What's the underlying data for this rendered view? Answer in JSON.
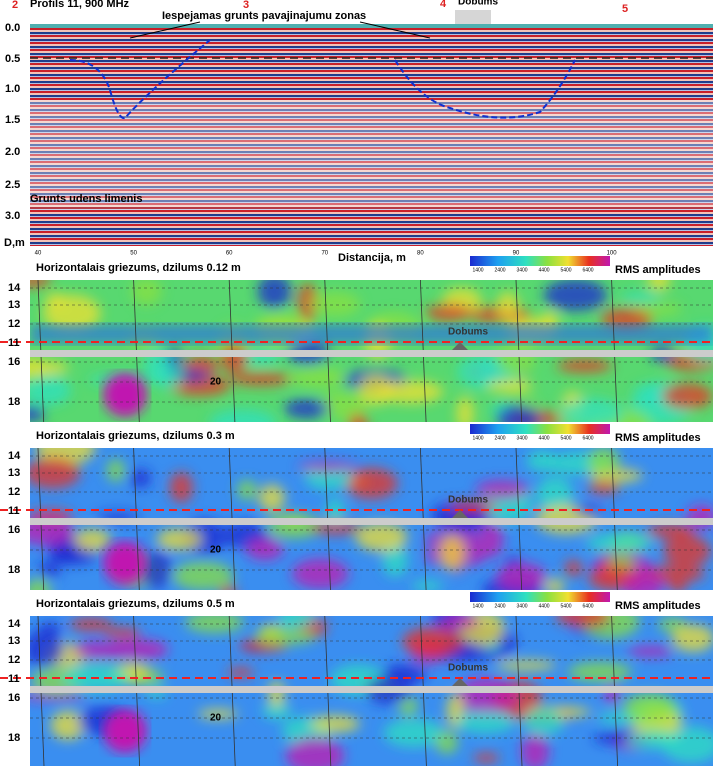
{
  "profile": {
    "markers": [
      "2",
      "3",
      "4",
      "5"
    ],
    "title": "Profils 11, 900 MHz",
    "annotation": "Iespejamas grunts pavajinajumu zonas",
    "cavity_label": "Dobums",
    "water_label": "Grunts udens limenis",
    "depth_ticks": [
      "0.0",
      "0.5",
      "1.0",
      "1.5",
      "2.0",
      "2.5",
      "3.0"
    ],
    "depth_axis_label": "D,m",
    "distance_ticks": [
      "40",
      "50",
      "60",
      "70",
      "80",
      "90",
      "100"
    ],
    "distance_axis_label": "Distancija, m"
  },
  "slices": [
    {
      "title": "Horizontalais  griezums, dzilums 0.12 m",
      "row_labels": [
        "14",
        "13",
        "12",
        "11",
        "16",
        "18"
      ],
      "center_label": "20",
      "cavity_label": "Dobums",
      "legend_ticks": [
        "1400",
        "2400",
        "3400",
        "4400",
        "5400",
        "6400"
      ],
      "legend_label": "RMS amplitudes"
    },
    {
      "title": "Horizontalais  griezums, dzilums 0.3 m",
      "row_labels": [
        "14",
        "13",
        "12",
        "11",
        "16",
        "18"
      ],
      "center_label": "20",
      "cavity_label": "Dobums",
      "legend_ticks": [
        "1400",
        "2400",
        "3400",
        "4400",
        "5400",
        "6400"
      ],
      "legend_label": "RMS amplitudes"
    },
    {
      "title": "Horizontalais  griezums, dzilums 0.5 m",
      "row_labels": [
        "14",
        "13",
        "12",
        "11",
        "16",
        "18"
      ],
      "center_label": "20",
      "cavity_label": "Dobums",
      "legend_ticks": [
        "1400",
        "2400",
        "3400",
        "4400",
        "5400",
        "6400"
      ],
      "legend_label": "RMS amplitudes"
    }
  ]
}
